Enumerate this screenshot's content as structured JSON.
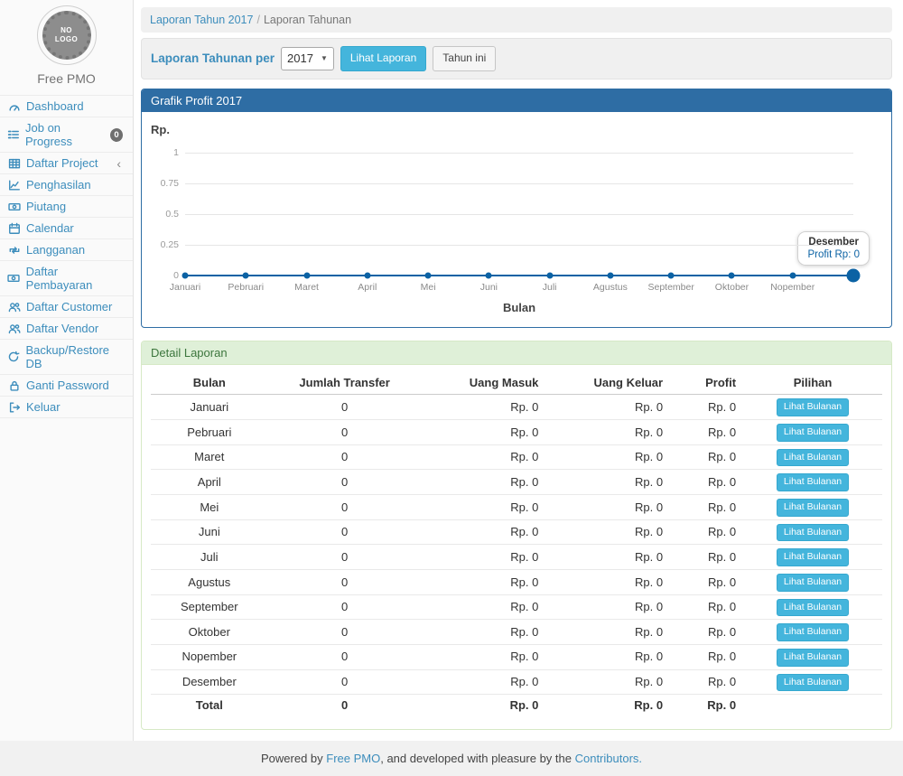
{
  "app": {
    "brand": "Free PMO",
    "logo_text": "NO LOGO"
  },
  "sidebar": {
    "items": [
      {
        "label": "Dashboard",
        "icon": "dashboard-icon"
      },
      {
        "label": "Job on Progress",
        "icon": "tasks-icon",
        "badge": "0"
      },
      {
        "label": "Daftar Project",
        "icon": "table-icon",
        "chevron": true
      },
      {
        "label": "Penghasilan",
        "icon": "chart-line-icon"
      },
      {
        "label": "Piutang",
        "icon": "money-icon"
      },
      {
        "label": "Calendar",
        "icon": "calendar-icon"
      },
      {
        "label": "Langganan",
        "icon": "retweet-icon"
      },
      {
        "label": "Daftar Pembayaran",
        "icon": "money-icon"
      },
      {
        "label": "Daftar Customer",
        "icon": "users-icon"
      },
      {
        "label": "Daftar Vendor",
        "icon": "users-icon"
      },
      {
        "label": "Backup/Restore DB",
        "icon": "refresh-icon"
      },
      {
        "label": "Ganti Password",
        "icon": "lock-icon"
      },
      {
        "label": "Keluar",
        "icon": "sign-out-icon"
      }
    ]
  },
  "breadcrumb": {
    "link": "Laporan Tahun 2017",
    "separator": "/",
    "current": "Laporan Tahunan"
  },
  "filter_bar": {
    "label": "Laporan Tahunan per",
    "year_value": "2017",
    "submit_label": "Lihat Laporan",
    "current_year_label": "Tahun ini"
  },
  "chart_panel": {
    "title": "Grafik Profit 2017"
  },
  "chart_data": {
    "type": "line",
    "title": "Grafik Profit 2017",
    "ylabel": "Rp.",
    "xlabel": "Bulan",
    "categories": [
      "Januari",
      "Pebruari",
      "Maret",
      "April",
      "Mei",
      "Juni",
      "Juli",
      "Agustus",
      "September",
      "Oktober",
      "Nopember",
      "Desember"
    ],
    "series": [
      {
        "name": "Profit",
        "values": [
          0,
          0,
          0,
          0,
          0,
          0,
          0,
          0,
          0,
          0,
          0,
          0
        ]
      }
    ],
    "ylim": [
      0,
      1
    ],
    "yticks": [
      0,
      0.25,
      0.5,
      0.75,
      1
    ],
    "ytick_labels": [
      "0",
      "0.25",
      "0.5",
      "0.75",
      "1"
    ],
    "x_axis_labels_shown": [
      "Januari",
      "Pebruari",
      "Maret",
      "April",
      "Mei",
      "Juni",
      "Juli",
      "Agustus",
      "September",
      "Oktober",
      "Nopember"
    ],
    "grid": true,
    "legend": "none",
    "line_color": "#0b62a4",
    "highlighted_point": "Desember",
    "tooltip": {
      "title": "Desember",
      "value": "Profit Rp: 0"
    }
  },
  "detail_panel": {
    "title": "Detail Laporan",
    "action_label": "Lihat Bulanan",
    "table": {
      "headers": [
        "Bulan",
        "Jumlah Transfer",
        "Uang Masuk",
        "Uang Keluar",
        "Profit",
        "Pilihan"
      ],
      "rows": [
        [
          "Januari",
          "0",
          "Rp. 0",
          "Rp. 0",
          "Rp. 0"
        ],
        [
          "Pebruari",
          "0",
          "Rp. 0",
          "Rp. 0",
          "Rp. 0"
        ],
        [
          "Maret",
          "0",
          "Rp. 0",
          "Rp. 0",
          "Rp. 0"
        ],
        [
          "April",
          "0",
          "Rp. 0",
          "Rp. 0",
          "Rp. 0"
        ],
        [
          "Mei",
          "0",
          "Rp. 0",
          "Rp. 0",
          "Rp. 0"
        ],
        [
          "Juni",
          "0",
          "Rp. 0",
          "Rp. 0",
          "Rp. 0"
        ],
        [
          "Juli",
          "0",
          "Rp. 0",
          "Rp. 0",
          "Rp. 0"
        ],
        [
          "Agustus",
          "0",
          "Rp. 0",
          "Rp. 0",
          "Rp. 0"
        ],
        [
          "September",
          "0",
          "Rp. 0",
          "Rp. 0",
          "Rp. 0"
        ],
        [
          "Oktober",
          "0",
          "Rp. 0",
          "Rp. 0",
          "Rp. 0"
        ],
        [
          "Nopember",
          "0",
          "Rp. 0",
          "Rp. 0",
          "Rp. 0"
        ],
        [
          "Desember",
          "0",
          "Rp. 0",
          "Rp. 0",
          "Rp. 0"
        ]
      ],
      "total_row": [
        "Total",
        "0",
        "Rp. 0",
        "Rp. 0",
        "Rp. 0"
      ]
    }
  },
  "footer": {
    "text_before": "Powered by ",
    "link_brand": "Free PMO",
    "text_middle": ", and developed with pleasure by the ",
    "link_contributors": "Contributors."
  },
  "colors": {
    "primary_link": "#3c8dbc",
    "panel_header_blue": "#2e6da4",
    "info_button": "#44b5dc",
    "success_header_bg": "#dff0d8",
    "success_header_text": "#3c763d",
    "chart_line": "#0b62a4"
  }
}
